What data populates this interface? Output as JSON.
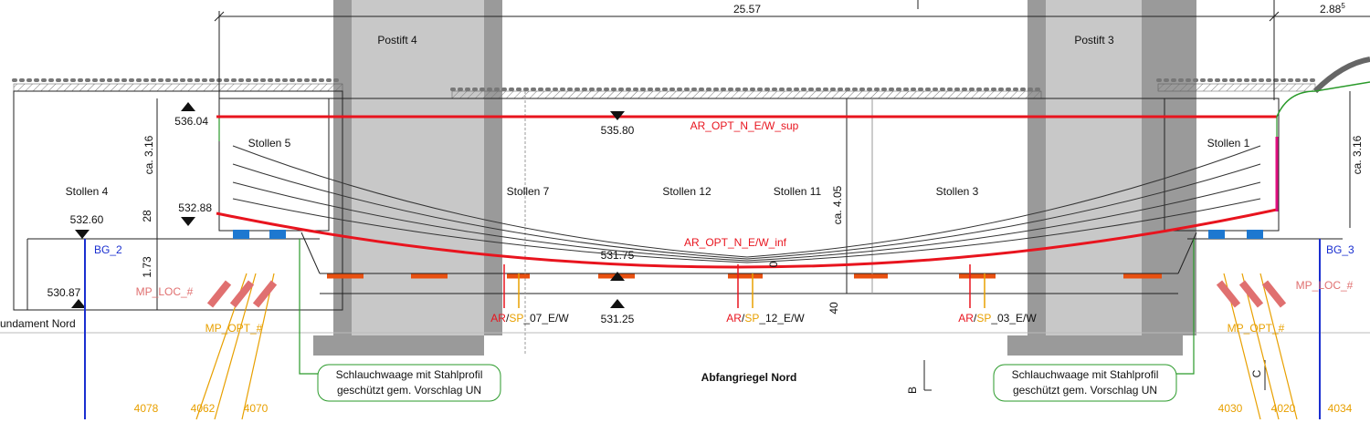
{
  "dimensions": {
    "span": "25.57",
    "right_main": "2.88",
    "right_sup": "5",
    "height_left": "ca. 3.16",
    "height_right": "ca. 3.16",
    "height_mid": "ca. 4.05",
    "d28": "28",
    "d173": "1.73",
    "d40": "40",
    "d0": "0"
  },
  "pillars": [
    "Postift 4",
    "Postift 3"
  ],
  "elevations": [
    "536.04",
    "535.80",
    "532.88",
    "532.60",
    "531.75",
    "530.87",
    "531.25"
  ],
  "galleries": [
    "Stollen 4",
    "Stollen 5",
    "Stollen 7",
    "Stollen 12",
    "Stollen 11",
    "Stollen 3",
    "Stollen 1"
  ],
  "sensors": {
    "sup": "AR_OPT_N_E/W_sup",
    "inf": "AR_OPT_N_E/W_inf",
    "bg": [
      "BG_2",
      "BG_3"
    ],
    "mp_loc": [
      "MP_LOC_#",
      "MP_LOC_#"
    ],
    "mp_opt": [
      "MP_OPT_#",
      "MP_OPT_#"
    ]
  },
  "ar_sp": [
    {
      "ar": "AR",
      "sep": "/",
      "sp": "SP",
      "suffix": "_07_E/W"
    },
    {
      "ar": "AR",
      "sep": "/",
      "sp": "SP",
      "suffix": "_12_E/W"
    },
    {
      "ar": "AR",
      "sep": "/",
      "sp": "SP",
      "suffix": "_03_E/W"
    }
  ],
  "notes": [
    {
      "line1": "Schlauchwaage mit Stahlprofil",
      "line2": "geschützt gem. Vorschlag UN"
    },
    {
      "line1": "Schlauchwaage mit Stahlprofil",
      "line2": "geschützt gem. Vorschlag UN"
    }
  ],
  "foundation": "undament Nord",
  "title": "Abfangriegel Nord",
  "sections": [
    "B",
    "C"
  ],
  "boreholes": [
    "4078",
    "4062",
    "4070",
    "4030",
    "4020",
    "4034"
  ]
}
